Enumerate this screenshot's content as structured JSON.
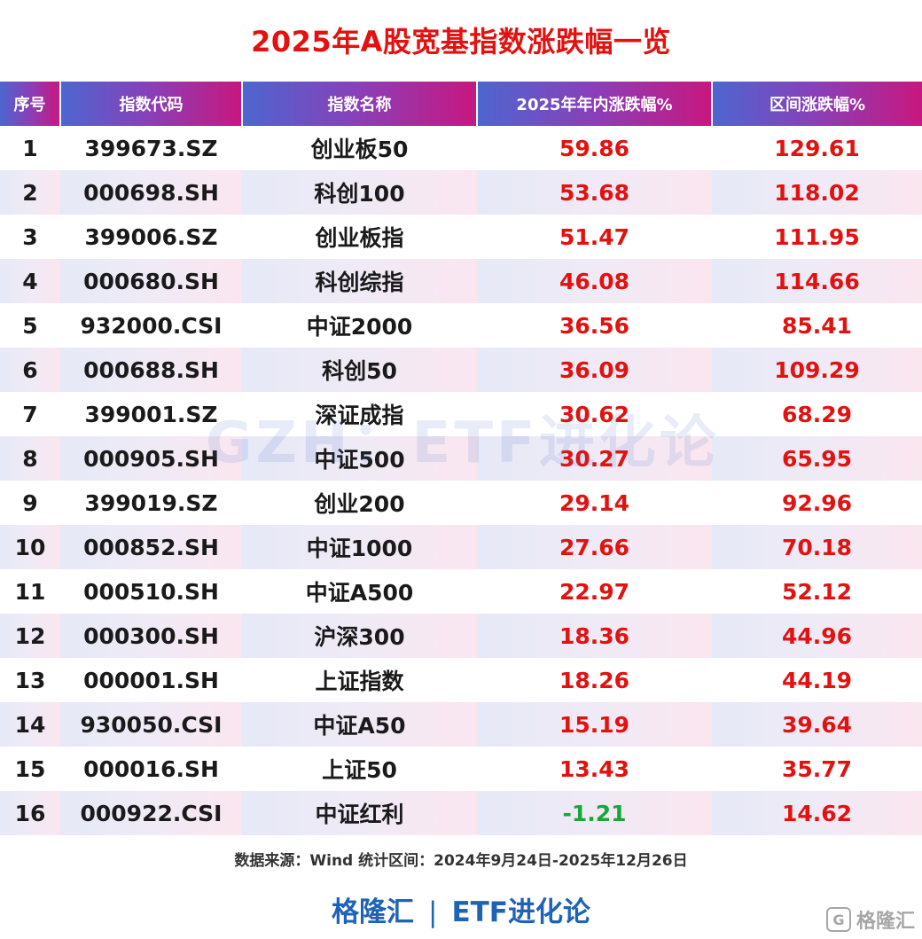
{
  "title": "2025年A股宽基指数涨跌幅一览",
  "table": {
    "headers": [
      "序号",
      "指数代码",
      "指数名称",
      "2025年年内涨跌幅%",
      "区间涨跌幅%"
    ],
    "rows": [
      {
        "no": "1",
        "code": "399673.SZ",
        "name": "创业板50",
        "ytd": "59.86",
        "range": "129.61"
      },
      {
        "no": "2",
        "code": "000698.SH",
        "name": "科创100",
        "ytd": "53.68",
        "range": "118.02"
      },
      {
        "no": "3",
        "code": "399006.SZ",
        "name": "创业板指",
        "ytd": "51.47",
        "range": "111.95"
      },
      {
        "no": "4",
        "code": "000680.SH",
        "name": "科创综指",
        "ytd": "46.08",
        "range": "114.66"
      },
      {
        "no": "5",
        "code": "932000.CSI",
        "name": "中证2000",
        "ytd": "36.56",
        "range": "85.41"
      },
      {
        "no": "6",
        "code": "000688.SH",
        "name": "科创50",
        "ytd": "36.09",
        "range": "109.29"
      },
      {
        "no": "7",
        "code": "399001.SZ",
        "name": "深证成指",
        "ytd": "30.62",
        "range": "68.29"
      },
      {
        "no": "8",
        "code": "000905.SH",
        "name": "中证500",
        "ytd": "30.27",
        "range": "65.95"
      },
      {
        "no": "9",
        "code": "399019.SZ",
        "name": "创业200",
        "ytd": "29.14",
        "range": "92.96"
      },
      {
        "no": "10",
        "code": "000852.SH",
        "name": "中证1000",
        "ytd": "27.66",
        "range": "70.18"
      },
      {
        "no": "11",
        "code": "000510.SH",
        "name": "中证A500",
        "ytd": "22.97",
        "range": "52.12"
      },
      {
        "no": "12",
        "code": "000300.SH",
        "name": "沪深300",
        "ytd": "18.36",
        "range": "44.96"
      },
      {
        "no": "13",
        "code": "000001.SH",
        "name": "上证指数",
        "ytd": "18.26",
        "range": "44.19"
      },
      {
        "no": "14",
        "code": "930050.CSI",
        "name": "中证A50",
        "ytd": "15.19",
        "range": "39.64"
      },
      {
        "no": "15",
        "code": "000016.SH",
        "name": "上证50",
        "ytd": "13.43",
        "range": "35.77"
      },
      {
        "no": "16",
        "code": "000922.CSI",
        "name": "中证红利",
        "ytd": "-1.21",
        "range": "14.62"
      }
    ]
  },
  "watermark": "GZH：ETF进化论",
  "source": "数据来源：Wind 统计区间：2024年9月24日-2025年12月26日",
  "footer": {
    "brand_left": "格隆汇",
    "separator": "|",
    "brand_right": "ETF进化论"
  },
  "corner_logo": {
    "icon": "G",
    "text": "格隆汇"
  },
  "colors": {
    "title": "#e1120f",
    "positive": "#e1120f",
    "negative": "#1aa63c",
    "header_gradient_start": "#4d66cf",
    "header_gradient_end": "#c8177f",
    "footer_brand": "#1f63b6"
  }
}
